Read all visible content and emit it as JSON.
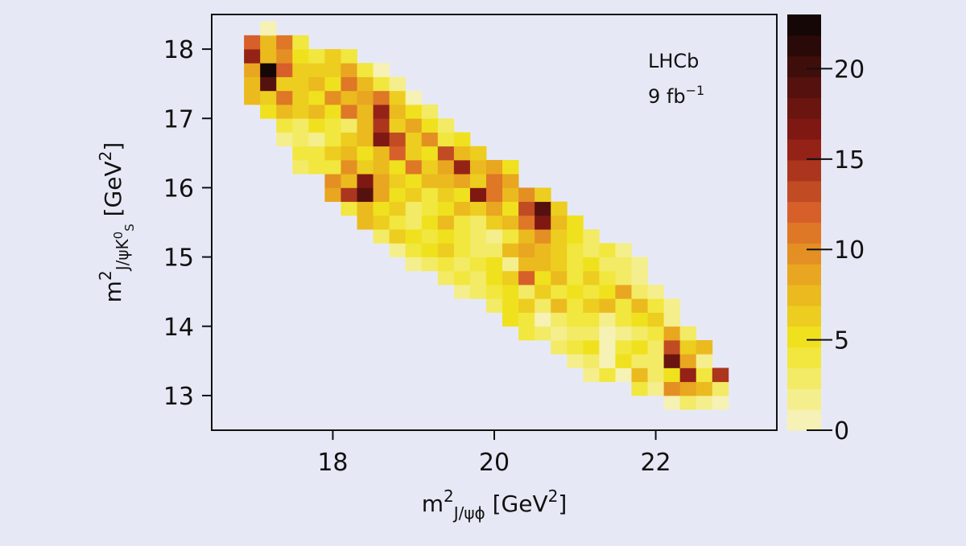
{
  "chart_data": {
    "type": "heatmap",
    "xlim": [
      16.5,
      23.5
    ],
    "ylim": [
      12.5,
      18.5
    ],
    "xticks": [
      18,
      20,
      22
    ],
    "yticks": [
      13,
      14,
      15,
      16,
      17,
      18
    ],
    "zlim": [
      0,
      23
    ],
    "zticks": [
      0,
      5,
      10,
      15,
      20
    ],
    "color_steps": 20,
    "colorscale": [
      [
        0,
        "#f7f3c8"
      ],
      [
        5,
        "#f0e41e"
      ],
      [
        9,
        "#e8a020"
      ],
      [
        12,
        "#d8602a"
      ],
      [
        16,
        "#8c1a14"
      ],
      [
        23,
        "#0a0505"
      ]
    ],
    "x_label": [
      {
        "text": "m",
        "pos": "base"
      },
      {
        "text": "2",
        "pos": "sup"
      },
      {
        "text": "J/ψϕ",
        "pos": "sub"
      },
      {
        "text": " [GeV",
        "pos": "base"
      },
      {
        "text": "2",
        "pos": "sup"
      },
      {
        "text": "]",
        "pos": "base"
      }
    ],
    "y_label": [
      {
        "text": "m",
        "pos": "base"
      },
      {
        "text": "2",
        "pos": "sup"
      },
      {
        "text": "J/ψK",
        "pos": "sub"
      },
      {
        "text": "0",
        "pos": "subsup"
      },
      {
        "text": "S",
        "pos": "subsub"
      },
      {
        "text": " [GeV",
        "pos": "base"
      },
      {
        "text": "2",
        "pos": "sup"
      },
      {
        "text": "]",
        "pos": "base"
      }
    ],
    "annotations": [
      {
        "text": "LHCb"
      },
      {
        "text": "9 fb",
        "sup": "−1"
      }
    ],
    "xbins": [
      16.9,
      17.1,
      17.3,
      17.5,
      17.7,
      17.9,
      18.1,
      18.3,
      18.5,
      18.7,
      18.9,
      19.1,
      19.3,
      19.5,
      19.7,
      19.9,
      20.1,
      20.3,
      20.5,
      20.7,
      20.9,
      21.1,
      21.3,
      21.5,
      21.7,
      21.9,
      22.1,
      22.3,
      22.5,
      22.7,
      22.9
    ],
    "ybins": [
      12.8,
      13.0,
      13.2,
      13.4,
      13.6,
      13.8,
      14.0,
      14.2,
      14.4,
      14.6,
      14.8,
      15.0,
      15.2,
      15.4,
      15.6,
      15.8,
      16.0,
      16.2,
      16.4,
      16.6,
      16.8,
      17.0,
      17.2,
      17.4,
      17.6,
      17.8,
      18.0,
      18.2,
      18.4
    ],
    "z": [
      [
        null,
        null,
        null,
        null,
        null,
        null,
        null,
        null,
        null,
        null,
        null,
        null,
        null,
        null,
        null,
        null,
        null,
        null,
        null,
        null,
        null,
        null,
        null,
        null,
        null,
        null,
        1,
        3,
        2,
        1
      ],
      [
        null,
        null,
        null,
        null,
        null,
        null,
        null,
        null,
        null,
        null,
        null,
        null,
        null,
        null,
        null,
        null,
        null,
        null,
        null,
        null,
        null,
        null,
        null,
        null,
        4,
        2,
        10,
        9,
        8,
        3
      ],
      [
        null,
        null,
        null,
        null,
        null,
        null,
        null,
        null,
        null,
        null,
        null,
        null,
        null,
        null,
        null,
        null,
        null,
        null,
        null,
        null,
        null,
        2,
        4,
        1,
        8,
        3,
        5,
        16,
        4,
        14
      ],
      [
        null,
        null,
        null,
        null,
        null,
        null,
        null,
        null,
        null,
        null,
        null,
        null,
        null,
        null,
        null,
        null,
        null,
        null,
        null,
        null,
        2,
        3,
        1,
        5,
        3,
        3,
        18,
        9,
        2,
        null
      ],
      [
        null,
        null,
        null,
        null,
        null,
        null,
        null,
        null,
        null,
        null,
        null,
        null,
        null,
        null,
        null,
        null,
        null,
        null,
        null,
        3,
        4,
        5,
        0,
        4,
        5,
        3,
        13,
        6,
        8,
        null
      ],
      [
        null,
        null,
        null,
        null,
        null,
        null,
        null,
        null,
        null,
        null,
        null,
        null,
        null,
        null,
        null,
        null,
        null,
        4,
        3,
        2,
        3,
        3,
        1,
        2,
        3,
        4,
        9,
        3,
        null,
        null
      ],
      [
        null,
        null,
        null,
        null,
        null,
        null,
        null,
        null,
        null,
        null,
        null,
        null,
        null,
        null,
        null,
        null,
        5,
        4,
        1,
        3,
        4,
        4,
        2,
        4,
        5,
        6,
        2,
        null,
        null,
        null
      ],
      [
        null,
        null,
        null,
        null,
        null,
        null,
        null,
        null,
        null,
        null,
        null,
        null,
        null,
        null,
        null,
        3,
        5,
        6,
        3,
        7,
        4,
        6,
        8,
        4,
        7,
        4,
        2,
        null,
        null,
        null
      ],
      [
        null,
        null,
        null,
        null,
        null,
        null,
        null,
        null,
        null,
        null,
        null,
        null,
        null,
        2,
        3,
        4,
        5,
        3,
        6,
        4,
        5,
        4,
        5,
        9,
        3,
        2,
        null,
        null,
        null,
        null
      ],
      [
        null,
        null,
        null,
        null,
        null,
        null,
        null,
        null,
        null,
        null,
        null,
        null,
        3,
        4,
        3,
        5,
        6,
        12,
        5,
        7,
        4,
        6,
        4,
        3,
        2,
        null,
        null,
        null,
        null,
        null
      ],
      [
        null,
        null,
        null,
        null,
        null,
        null,
        null,
        null,
        null,
        null,
        2,
        3,
        4,
        3,
        4,
        5,
        2,
        8,
        7,
        6,
        4,
        5,
        3,
        3,
        2,
        null,
        null,
        null,
        null,
        null
      ],
      [
        null,
        null,
        null,
        null,
        null,
        null,
        null,
        null,
        null,
        2,
        4,
        5,
        6,
        4,
        3,
        3,
        7,
        9,
        8,
        6,
        4,
        3,
        4,
        2,
        null,
        null,
        null,
        null,
        null,
        null
      ],
      [
        null,
        null,
        null,
        null,
        null,
        null,
        null,
        null,
        3,
        6,
        5,
        4,
        5,
        4,
        3,
        2,
        4,
        7,
        10,
        6,
        5,
        3,
        null,
        null,
        null,
        null,
        null,
        null,
        null,
        null
      ],
      [
        null,
        null,
        null,
        null,
        null,
        null,
        null,
        7,
        6,
        4,
        3,
        5,
        7,
        4,
        3,
        6,
        8,
        11,
        17,
        7,
        5,
        null,
        null,
        null,
        null,
        null,
        null,
        null,
        null,
        null
      ],
      [
        null,
        null,
        null,
        null,
        null,
        null,
        4,
        7,
        5,
        6,
        3,
        4,
        5,
        8,
        6,
        9,
        5,
        13,
        19,
        6,
        null,
        null,
        null,
        null,
        null,
        null,
        null,
        null,
        null,
        null
      ],
      [
        null,
        null,
        null,
        null,
        null,
        9,
        14,
        19,
        9,
        5,
        6,
        4,
        6,
        5,
        17,
        11,
        8,
        10,
        6,
        null,
        null,
        null,
        null,
        null,
        null,
        null,
        null,
        null,
        null,
        null
      ],
      [
        null,
        null,
        null,
        null,
        null,
        10,
        8,
        17,
        9,
        6,
        5,
        8,
        7,
        9,
        6,
        11,
        9,
        null,
        null,
        null,
        null,
        null,
        null,
        null,
        null,
        null,
        null,
        null,
        null,
        null
      ],
      [
        null,
        null,
        null,
        3,
        4,
        4,
        10,
        6,
        8,
        5,
        11,
        6,
        9,
        16,
        7,
        9,
        5,
        null,
        null,
        null,
        null,
        null,
        null,
        null,
        null,
        null,
        null,
        null,
        null,
        null
      ],
      [
        null,
        null,
        null,
        4,
        4,
        6,
        8,
        5,
        8,
        12,
        6,
        5,
        13,
        8,
        6,
        null,
        null,
        null,
        null,
        null,
        null,
        null,
        null,
        null,
        null,
        null,
        null,
        null,
        null,
        null
      ],
      [
        null,
        null,
        2,
        3,
        2,
        4,
        6,
        7,
        17,
        13,
        6,
        10,
        4,
        5,
        null,
        null,
        null,
        null,
        null,
        null,
        null,
        null,
        null,
        null,
        null,
        null,
        null,
        null,
        null,
        null
      ],
      [
        null,
        null,
        4,
        3,
        5,
        4,
        3,
        7,
        14,
        6,
        9,
        5,
        3,
        null,
        null,
        null,
        null,
        null,
        null,
        null,
        null,
        null,
        null,
        null,
        null,
        null,
        null,
        null,
        null,
        null
      ],
      [
        null,
        5,
        7,
        6,
        8,
        5,
        11,
        8,
        15,
        8,
        5,
        3,
        null,
        null,
        null,
        null,
        null,
        null,
        null,
        null,
        null,
        null,
        null,
        null,
        null,
        null,
        null,
        null,
        null,
        null
      ],
      [
        8,
        6,
        11,
        6,
        5,
        10,
        8,
        9,
        11,
        6,
        1,
        null,
        null,
        null,
        null,
        null,
        null,
        null,
        null,
        null,
        null,
        null,
        null,
        null,
        null,
        null,
        null,
        null,
        null,
        null
      ],
      [
        7,
        19,
        6,
        6,
        8,
        5,
        11,
        8,
        4,
        2,
        null,
        null,
        null,
        null,
        null,
        null,
        null,
        null,
        null,
        null,
        null,
        null,
        null,
        null,
        null,
        null,
        null,
        null,
        null,
        null
      ],
      [
        9,
        23,
        12,
        6,
        6,
        6,
        9,
        4,
        1,
        null,
        null,
        null,
        null,
        null,
        null,
        null,
        null,
        null,
        null,
        null,
        null,
        null,
        null,
        null,
        null,
        null,
        null,
        null,
        null,
        null
      ],
      [
        16,
        8,
        10,
        5,
        4,
        6,
        4,
        null,
        null,
        null,
        null,
        null,
        null,
        null,
        null,
        null,
        null,
        null,
        null,
        null,
        null,
        null,
        null,
        null,
        null,
        null,
        null,
        null,
        null,
        null
      ],
      [
        12,
        8,
        11,
        4,
        null,
        null,
        null,
        null,
        null,
        null,
        null,
        null,
        null,
        null,
        null,
        null,
        null,
        null,
        null,
        null,
        null,
        null,
        null,
        null,
        null,
        null,
        null,
        null,
        null,
        null
      ],
      [
        null,
        1,
        null,
        null,
        null,
        null,
        null,
        null,
        null,
        null,
        null,
        null,
        null,
        null,
        null,
        null,
        null,
        null,
        null,
        null,
        null,
        null,
        null,
        null,
        null,
        null,
        null,
        null,
        null,
        null
      ]
    ]
  }
}
